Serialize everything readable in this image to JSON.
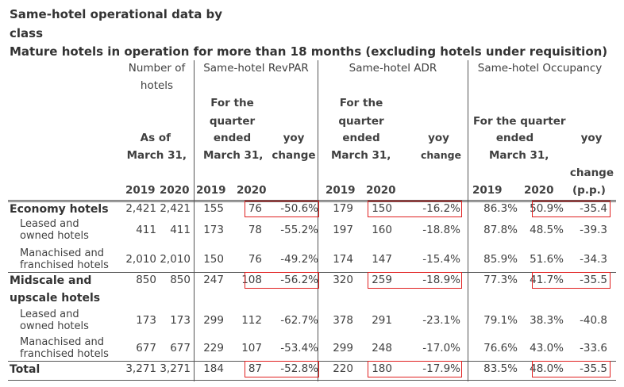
{
  "title": {
    "line1": "Same-hotel operational data by",
    "line2": "class",
    "line3": "Mature hotels in operation for more than 18 months (excluding hotels under requisition)"
  },
  "headers": {
    "number_of": "Number of",
    "hotels": "hotels",
    "revpar": "Same-hotel RevPAR",
    "adr": "Same-hotel ADR",
    "occupancy": "Same-hotel Occupancy",
    "for_the": "For the",
    "quarter": "quarter",
    "ended": "ended",
    "for_the_quarter": "For the quarter",
    "as_of": "As of",
    "march31_comma": "March 31,",
    "march31": "March 31,",
    "yoy": "yoy",
    "change": "change",
    "change_pp": "(p.p.)",
    "y2019": "2019",
    "y2020": "2020"
  },
  "rows": [
    {
      "label": [
        "Economy hotels"
      ],
      "bold": true,
      "n2019": "2,421",
      "n2020": "2,421",
      "rp2019": "155",
      "rp2020": "76",
      "rpyoy": "-50.6%",
      "adr2019": "179",
      "adr2020": "150",
      "adryoy": "-16.2%",
      "occ2019": "86.3%",
      "occ2020": "50.9%",
      "occyoy": "-35.4",
      "boxed": true
    },
    {
      "label": [
        "Leased and",
        "owned hotels"
      ],
      "bold": false,
      "n2019": "411",
      "n2020": "411",
      "rp2019": "173",
      "rp2020": "78",
      "rpyoy": "-55.2%",
      "adr2019": "197",
      "adr2020": "160",
      "adryoy": "-18.8%",
      "occ2019": "87.8%",
      "occ2020": "48.5%",
      "occyoy": "-39.3",
      "boxed": false
    },
    {
      "label": [
        "Manachised and",
        "franchised hotels"
      ],
      "bold": false,
      "n2019": "2,010",
      "n2020": "2,010",
      "rp2019": "150",
      "rp2020": "76",
      "rpyoy": "-49.2%",
      "adr2019": "174",
      "adr2020": "147",
      "adryoy": "-15.4%",
      "occ2019": "85.9%",
      "occ2020": "51.6%",
      "occyoy": "-34.3",
      "boxed": false
    },
    {
      "label": [
        "Midscale and",
        "upscale hotels"
      ],
      "bold": true,
      "n2019": "850",
      "n2020": "850",
      "rp2019": "247",
      "rp2020": "108",
      "rpyoy": "-56.2%",
      "adr2019": "320",
      "adr2020": "259",
      "adryoy": "-18.9%",
      "occ2019": "77.3%",
      "occ2020": "41.7%",
      "occyoy": "-35.5",
      "boxed": true
    },
    {
      "label": [
        "Leased and",
        "owned hotels"
      ],
      "bold": false,
      "n2019": "173",
      "n2020": "173",
      "rp2019": "299",
      "rp2020": "112",
      "rpyoy": "-62.7%",
      "adr2019": "378",
      "adr2020": "291",
      "adryoy": "-23.1%",
      "occ2019": "79.1%",
      "occ2020": "38.3%",
      "occyoy": "-40.8",
      "boxed": false
    },
    {
      "label": [
        "Manachised and",
        "franchised hotels"
      ],
      "bold": false,
      "n2019": "677",
      "n2020": "677",
      "rp2019": "229",
      "rp2020": "107",
      "rpyoy": "-53.4%",
      "adr2019": "299",
      "adr2020": "248",
      "adryoy": "-17.0%",
      "occ2019": "76.6%",
      "occ2020": "43.0%",
      "occyoy": "-33.6",
      "boxed": false
    },
    {
      "label": [
        "Total"
      ],
      "bold": true,
      "n2019": "3,271",
      "n2020": "3,271",
      "rp2019": "184",
      "rp2020": "87",
      "rpyoy": "-52.8%",
      "adr2019": "220",
      "adr2020": "180",
      "adryoy": "-17.9%",
      "occ2019": "83.5%",
      "occ2020": "48.0%",
      "occyoy": "-35.5",
      "boxed": true
    }
  ]
}
